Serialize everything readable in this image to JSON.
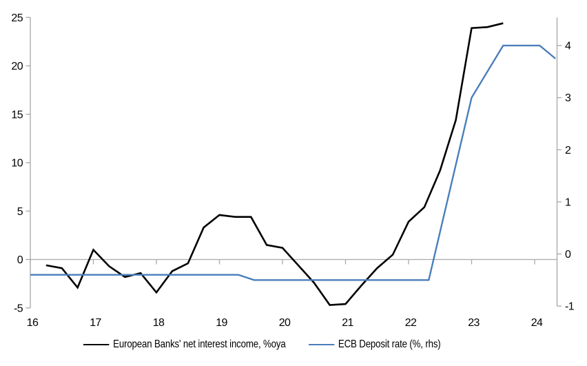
{
  "chart": {
    "background": "#ffffff",
    "axis_color": "#a6a6a6",
    "zero_line_color": "#a9a9a9",
    "text_color": "#000000",
    "series_colors": {
      "net_interest_income": "#000000",
      "ecb_deposit_rate": "#4a7ebb"
    }
  },
  "chart_data": {
    "type": "line",
    "title": "",
    "grid": "zero-line-only",
    "legend_position": "bottom",
    "x_axis": {
      "labels": [
        "16",
        "17",
        "18",
        "19",
        "20",
        "21",
        "22",
        "23",
        "24"
      ],
      "tick_values": [
        16,
        17,
        18,
        19,
        20,
        21,
        22,
        23,
        24
      ],
      "range": [
        16,
        24.36
      ]
    },
    "left_axis": {
      "labels": [
        "-5",
        "0",
        "5",
        "10",
        "15",
        "20",
        "25"
      ],
      "tick_values": [
        -5,
        0,
        5,
        10,
        15,
        20,
        25
      ],
      "range": [
        -5,
        25
      ]
    },
    "right_axis": {
      "labels": [
        "-1",
        "0",
        "1",
        "2",
        "3",
        "4"
      ],
      "tick_values": [
        -1,
        0,
        1,
        2,
        3,
        4
      ],
      "range": [
        -1,
        4.55
      ]
    },
    "series": [
      {
        "name": "European Banks' net interest income, %oya",
        "axis": "left",
        "color": "#000000",
        "stroke_width": 2.6,
        "x": [
          16.25,
          16.5,
          16.75,
          17.0,
          17.25,
          17.5,
          17.75,
          18.0,
          18.25,
          18.5,
          18.75,
          19.0,
          19.25,
          19.5,
          19.75,
          20.0,
          20.25,
          20.5,
          20.75,
          21.0,
          21.25,
          21.5,
          21.75,
          22.0,
          22.25,
          22.5,
          22.75,
          23.0,
          23.25,
          23.5
        ],
        "values": [
          -0.6,
          -0.9,
          -2.9,
          1.0,
          -0.7,
          -1.8,
          -1.4,
          -3.4,
          -1.2,
          -0.4,
          3.3,
          4.6,
          4.4,
          4.4,
          1.5,
          1.2,
          -0.6,
          -2.4,
          -4.7,
          -4.6,
          -2.7,
          -0.9,
          0.5,
          3.9,
          5.4,
          9.2,
          14.4,
          23.9,
          24.0,
          24.4
        ]
      },
      {
        "name": "ECB Deposit rate (%, rhs)",
        "axis": "right",
        "color": "#4a7ebb",
        "stroke_width": 2.4,
        "x": [
          16.0,
          19.3,
          19.55,
          22.32,
          23.0,
          23.5,
          24.08,
          24.33
        ],
        "values": [
          -0.4,
          -0.4,
          -0.5,
          -0.5,
          3.0,
          4.0,
          4.0,
          3.75
        ]
      }
    ]
  },
  "legend": {
    "items": [
      {
        "label": "European Banks' net interest income, %oya",
        "color": "#000000"
      },
      {
        "label": "ECB Deposit rate (%, rhs)",
        "color": "#4a7ebb"
      }
    ]
  }
}
